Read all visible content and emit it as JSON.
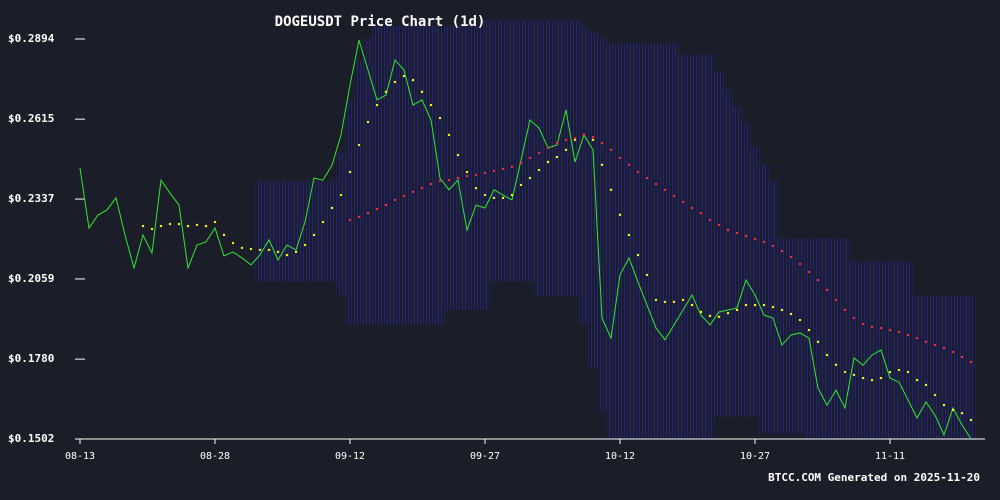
{
  "chart_data": {
    "type": "line",
    "title": "DOGEUSDT Price Chart (1d)",
    "footer": "BTCC.COM Generated on 2025-11-20",
    "categories": [
      "08-13",
      null,
      null,
      null,
      null,
      null,
      null,
      null,
      null,
      null,
      null,
      null,
      null,
      null,
      null,
      "08-28",
      null,
      null,
      null,
      null,
      null,
      null,
      null,
      null,
      null,
      null,
      null,
      null,
      null,
      null,
      "09-12",
      null,
      null,
      null,
      null,
      null,
      null,
      null,
      null,
      null,
      null,
      null,
      null,
      null,
      null,
      "09-27",
      null,
      null,
      null,
      null,
      null,
      null,
      null,
      null,
      null,
      null,
      null,
      null,
      null,
      null,
      "10-12",
      null,
      null,
      null,
      null,
      null,
      null,
      null,
      null,
      null,
      null,
      null,
      null,
      null,
      null,
      "10-27",
      null,
      null,
      null,
      null,
      null,
      null,
      null,
      null,
      null,
      null,
      null,
      null,
      null,
      null,
      "11-11",
      null,
      null,
      null,
      null,
      null,
      null,
      null,
      null,
      null
    ],
    "ylim": [
      0.1502,
      0.2894
    ],
    "yticks": [
      {
        "value": 0.1502,
        "label": "$0.1502"
      },
      {
        "value": 0.178,
        "label": "$0.1780"
      },
      {
        "value": 0.2059,
        "label": "$0.2059"
      },
      {
        "value": 0.2337,
        "label": "$0.2337"
      },
      {
        "value": 0.2615,
        "label": "$0.2615"
      },
      {
        "value": 0.2894,
        "label": "$0.2894"
      }
    ],
    "bands": {
      "color": "#23237a",
      "upper": [
        null,
        null,
        null,
        null,
        null,
        null,
        null,
        null,
        null,
        null,
        null,
        null,
        null,
        null,
        null,
        null,
        null,
        null,
        null,
        null,
        0.24,
        0.24,
        0.24,
        0.24,
        0.24,
        0.24,
        0.24,
        0.24,
        0.24,
        0.25,
        0.268,
        0.282,
        0.29,
        0.294,
        0.294,
        0.294,
        0.294,
        0.294,
        0.294,
        0.294,
        0.294,
        0.294,
        0.294,
        0.294,
        0.294,
        0.296,
        0.296,
        0.296,
        0.296,
        0.296,
        0.296,
        0.296,
        0.296,
        0.296,
        0.296,
        0.296,
        0.294,
        0.292,
        0.29,
        0.288,
        0.288,
        0.288,
        0.288,
        0.288,
        0.288,
        0.288,
        0.288,
        0.284,
        0.284,
        0.284,
        0.284,
        0.278,
        0.272,
        0.266,
        0.26,
        0.252,
        0.246,
        0.24,
        0.22,
        0.22,
        0.22,
        0.22,
        0.22,
        0.22,
        0.22,
        0.22,
        0.212,
        0.212,
        0.212,
        0.212,
        0.212,
        0.212,
        0.212,
        0.2,
        0.2,
        0.2,
        0.2,
        0.2,
        0.2,
        0.2
      ],
      "lower": [
        null,
        null,
        null,
        null,
        null,
        null,
        null,
        null,
        null,
        null,
        null,
        null,
        null,
        null,
        null,
        null,
        null,
        null,
        null,
        null,
        0.205,
        0.205,
        0.205,
        0.205,
        0.205,
        0.205,
        0.205,
        0.205,
        0.205,
        0.2,
        0.19,
        0.19,
        0.19,
        0.19,
        0.19,
        0.19,
        0.19,
        0.19,
        0.19,
        0.19,
        0.19,
        0.195,
        0.195,
        0.195,
        0.195,
        0.195,
        0.205,
        0.205,
        0.205,
        0.205,
        0.205,
        0.2,
        0.2,
        0.2,
        0.2,
        0.2,
        0.19,
        0.175,
        0.16,
        0.148,
        0.148,
        0.148,
        0.148,
        0.148,
        0.148,
        0.148,
        0.148,
        0.148,
        0.148,
        0.148,
        0.148,
        0.158,
        0.158,
        0.158,
        0.158,
        0.158,
        0.152,
        0.152,
        0.152,
        0.152,
        0.152,
        0.142,
        0.142,
        0.142,
        0.142,
        0.142,
        0.142,
        0.142,
        0.142,
        0.142,
        0.142,
        0.142,
        0.142,
        0.142,
        0.142,
        0.142,
        0.142,
        0.142,
        0.142,
        0.142
      ]
    },
    "series": [
      {
        "style": "line",
        "color": "#2ee82e",
        "values": [
          0.2445,
          0.2236,
          0.2281,
          0.2299,
          0.2341,
          0.2212,
          0.2097,
          0.2212,
          0.2149,
          0.2403,
          0.2358,
          0.2316,
          0.2097,
          0.2177,
          0.2188,
          0.2236,
          0.2139,
          0.2153,
          0.2132,
          0.2108,
          0.2143,
          0.2195,
          0.2125,
          0.2177,
          0.216,
          0.2257,
          0.241,
          0.2403,
          0.2455,
          0.256,
          0.2734,
          0.289,
          0.2786,
          0.2682,
          0.2699,
          0.2821,
          0.2786,
          0.2664,
          0.2682,
          0.2612,
          0.241,
          0.2369,
          0.2403,
          0.2229,
          0.2316,
          0.2306,
          0.2369,
          0.2351,
          0.2334,
          0.2473,
          0.2612,
          0.2584,
          0.2515,
          0.2525,
          0.2647,
          0.2466,
          0.256,
          0.2508,
          0.1923,
          0.1853,
          0.2073,
          0.2132,
          0.2048,
          0.1968,
          0.1888,
          0.1847,
          0.1899,
          0.1951,
          0.2003,
          0.1933,
          0.1899,
          0.1944,
          0.1951,
          0.1958,
          0.2055,
          0.2003,
          0.1933,
          0.1923,
          0.1829,
          0.1864,
          0.1871,
          0.1853,
          0.1679,
          0.162,
          0.1672,
          0.161,
          0.1784,
          0.1759,
          0.1794,
          0.1812,
          0.1714,
          0.17,
          0.1638,
          0.1575,
          0.1631,
          0.1585,
          0.1516,
          0.161,
          0.1551,
          0.1502
        ]
      },
      {
        "style": "dots",
        "color": "#ffff00",
        "values": [
          null,
          null,
          null,
          null,
          null,
          null,
          null,
          0.2243,
          0.2233,
          0.2243,
          0.225,
          0.225,
          0.2243,
          0.2247,
          0.2243,
          0.2257,
          0.2212,
          0.2184,
          0.2167,
          0.2163,
          0.216,
          0.216,
          0.2153,
          0.2142,
          0.2153,
          0.2177,
          0.2212,
          0.2257,
          0.2306,
          0.2351,
          0.2431,
          0.2525,
          0.2605,
          0.2664,
          0.271,
          0.2744,
          0.2765,
          0.2751,
          0.271,
          0.2664,
          0.2619,
          0.256,
          0.249,
          0.2431,
          0.2375,
          0.2351,
          0.2341,
          0.2341,
          0.2351,
          0.2386,
          0.241,
          0.2438,
          0.2466,
          0.2483,
          0.2508,
          0.2543,
          0.256,
          0.2543,
          0.2456,
          0.2369,
          0.2282,
          0.2212,
          0.2142,
          0.2073,
          0.1986,
          0.1979,
          0.1979,
          0.1986,
          0.1968,
          0.1944,
          0.193,
          0.1927,
          0.194,
          0.1951,
          0.1968,
          0.1968,
          0.1968,
          0.1961,
          0.1951,
          0.1937,
          0.1916,
          0.1881,
          0.184,
          0.1794,
          0.176,
          0.1735,
          0.1725,
          0.1714,
          0.1707,
          0.1714,
          0.1735,
          0.1742,
          0.1735,
          0.1707,
          0.169,
          0.1655,
          0.162,
          0.1603,
          0.1592,
          0.1568
        ]
      },
      {
        "style": "dots",
        "color": "#ff2a2a",
        "values": [
          null,
          null,
          null,
          null,
          null,
          null,
          null,
          null,
          null,
          null,
          null,
          null,
          null,
          null,
          null,
          null,
          null,
          null,
          null,
          null,
          null,
          null,
          null,
          null,
          null,
          null,
          null,
          null,
          null,
          null,
          0.2264,
          0.2275,
          0.2288,
          0.2302,
          0.2316,
          0.2334,
          0.2348,
          0.2362,
          0.2375,
          0.2389,
          0.24,
          0.2403,
          0.241,
          0.2417,
          0.2421,
          0.2428,
          0.2435,
          0.2442,
          0.2449,
          0.2462,
          0.248,
          0.2497,
          0.2515,
          0.2532,
          0.2543,
          0.2549,
          0.256,
          0.2553,
          0.2532,
          0.2508,
          0.248,
          0.2456,
          0.2431,
          0.241,
          0.2389,
          0.2369,
          0.2348,
          0.2327,
          0.2306,
          0.2288,
          0.2264,
          0.2247,
          0.2229,
          0.2219,
          0.2208,
          0.2198,
          0.2188,
          0.2174,
          0.2156,
          0.2135,
          0.2111,
          0.2083,
          0.2055,
          0.2021,
          0.1986,
          0.1951,
          0.1923,
          0.1902,
          0.1892,
          0.1888,
          0.1881,
          0.1874,
          0.1864,
          0.1853,
          0.184,
          0.1829,
          0.1819,
          0.1805,
          0.1787,
          0.177
        ]
      }
    ]
  }
}
